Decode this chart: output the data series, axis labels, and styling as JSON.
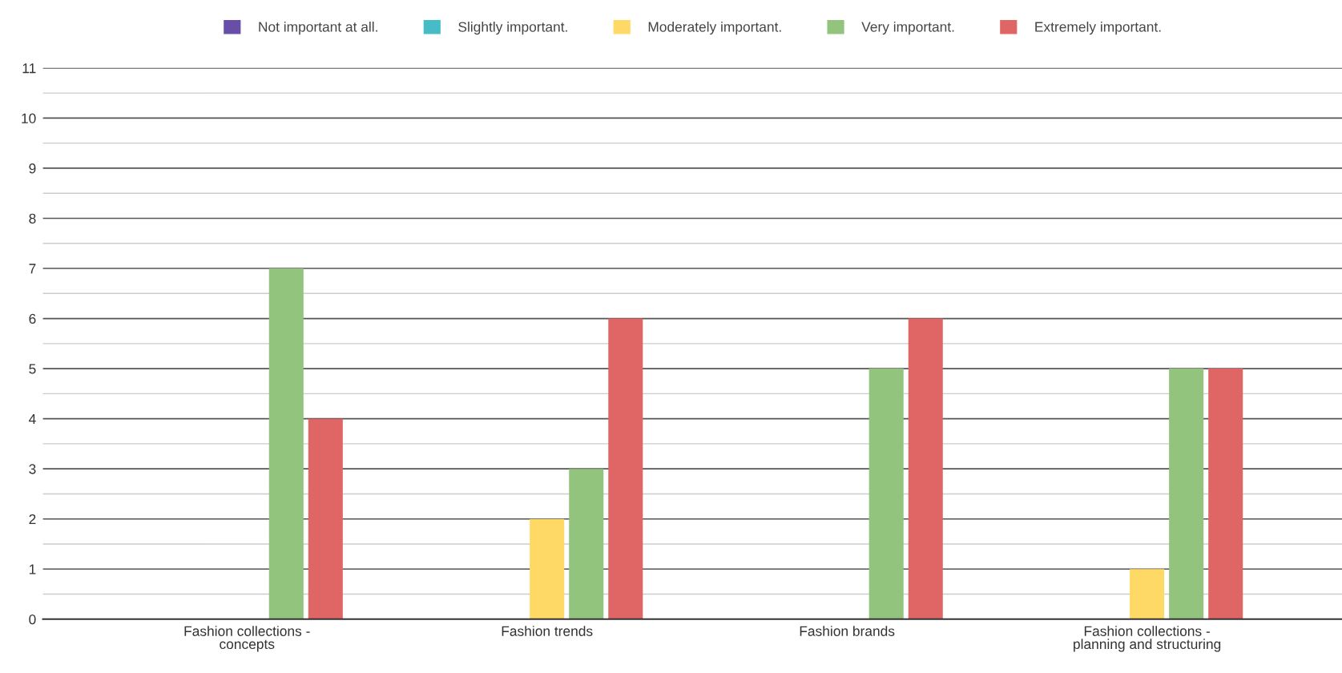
{
  "chart_data": {
    "type": "bar",
    "categories": [
      "Fashion collections -\nconcepts",
      "Fashion trends",
      "Fashion brands",
      "Fashion collections -\nplanning and structuring"
    ],
    "series": [
      {
        "name": "Not important at all.",
        "color": "#674ea7",
        "values": [
          0,
          0,
          0,
          0
        ]
      },
      {
        "name": "Slightly important.",
        "color": "#46bdc6",
        "values": [
          0,
          0,
          0,
          0
        ]
      },
      {
        "name": "Moderately important.",
        "color": "#ffd966",
        "values": [
          0,
          2,
          0,
          1
        ]
      },
      {
        "name": "Very important.",
        "color": "#93c47d",
        "values": [
          7,
          3,
          5,
          5
        ]
      },
      {
        "name": "Extremely important.",
        "color": "#e06666",
        "values": [
          4,
          6,
          6,
          5
        ]
      }
    ],
    "ylim": [
      0,
      11
    ],
    "yticks": [
      0,
      {
        "value": 0.5,
        "label": null
      },
      1,
      {
        "value": 1.5,
        "label": null
      },
      2,
      {
        "value": 2.5,
        "label": null
      },
      3,
      {
        "value": 3.5,
        "label": null
      },
      4,
      {
        "value": 4.5,
        "label": null
      },
      5,
      {
        "value": 5.5,
        "label": null
      },
      6,
      {
        "value": 6.5,
        "label": null
      },
      7,
      {
        "value": 7.5,
        "label": null
      },
      8,
      {
        "value": 8.5,
        "label": null
      },
      9,
      {
        "value": 9.5,
        "label": null
      },
      10,
      {
        "value": 10.5,
        "label": null
      },
      11
    ],
    "grid": "y",
    "legend": "top"
  }
}
